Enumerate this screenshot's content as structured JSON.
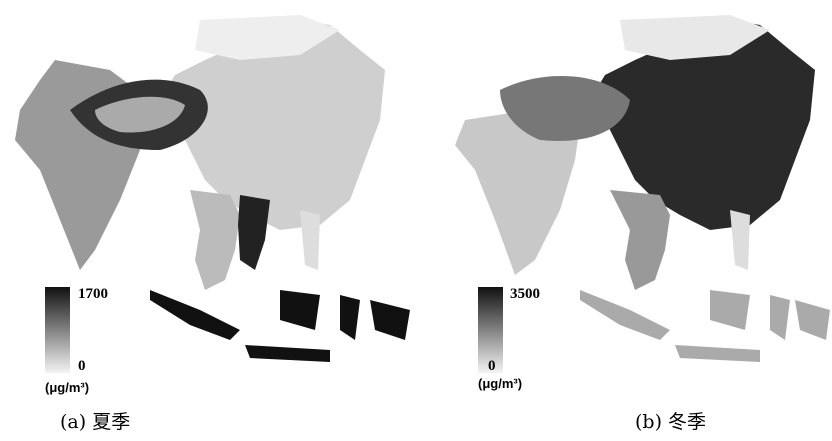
{
  "panels": [
    {
      "caption": "(a)  夏季",
      "legend": {
        "max": 1700,
        "min": 0,
        "unit": "(μg/m³)"
      }
    },
    {
      "caption": "(b)  冬季",
      "legend": {
        "max": 3500,
        "min": 0,
        "unit": "(μg/m³)"
      }
    }
  ]
}
